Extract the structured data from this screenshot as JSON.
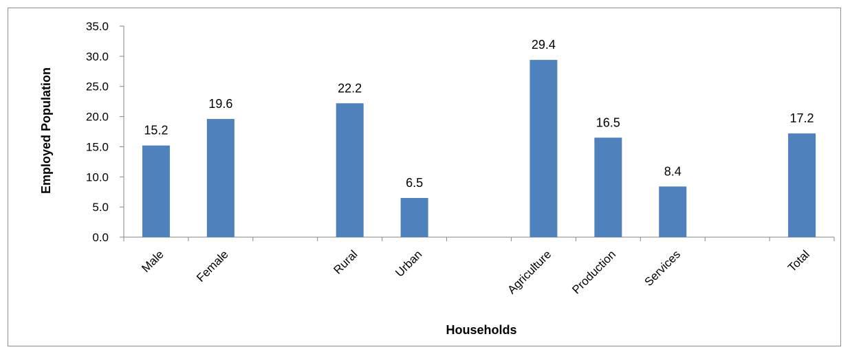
{
  "chart_data": {
    "type": "bar",
    "xlabel": "Households",
    "ylabel": "Employed Population",
    "ylim": [
      0,
      35
    ],
    "y_ticks": [
      "0.0",
      "5.0",
      "10.0",
      "15.0",
      "20.0",
      "25.0",
      "30.0",
      "35.0"
    ],
    "categories": [
      "Male",
      "Female",
      "",
      "Rural",
      "Urban",
      "",
      "Agriculture",
      "Production",
      "Services",
      "",
      "Total"
    ],
    "values": [
      15.2,
      19.6,
      null,
      22.2,
      6.5,
      null,
      29.4,
      16.5,
      8.4,
      null,
      17.2
    ],
    "data_labels": [
      "15.2",
      "19.6",
      "",
      "22.2",
      "6.5",
      "",
      "29.4",
      "16.5",
      "8.4",
      "",
      "17.2"
    ],
    "bar_color": "#4f81bd",
    "grid": false,
    "legend": "none"
  }
}
